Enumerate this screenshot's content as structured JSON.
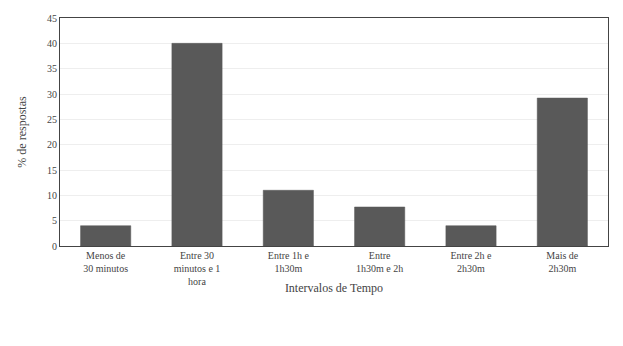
{
  "chart_data": {
    "type": "bar",
    "categories": [
      "Menos de\n30 minutos",
      "Entre 30\nminutos e 1\nhora",
      "Entre 1h e\n1h30m",
      "Entre\n1h30m e 2h",
      "Entre 2h e\n2h30m",
      "Mais de\n2h30m"
    ],
    "values": [
      4.0,
      40.0,
      11.0,
      7.7,
      4.0,
      29.2
    ],
    "color": "#595959",
    "xlabel": "Intervalos de Tempo",
    "ylabel": "% de respostas",
    "ylim": [
      0,
      45
    ],
    "yticks": [
      0,
      5,
      10,
      15,
      20,
      25,
      30,
      35,
      40,
      45
    ],
    "grid": true
  }
}
